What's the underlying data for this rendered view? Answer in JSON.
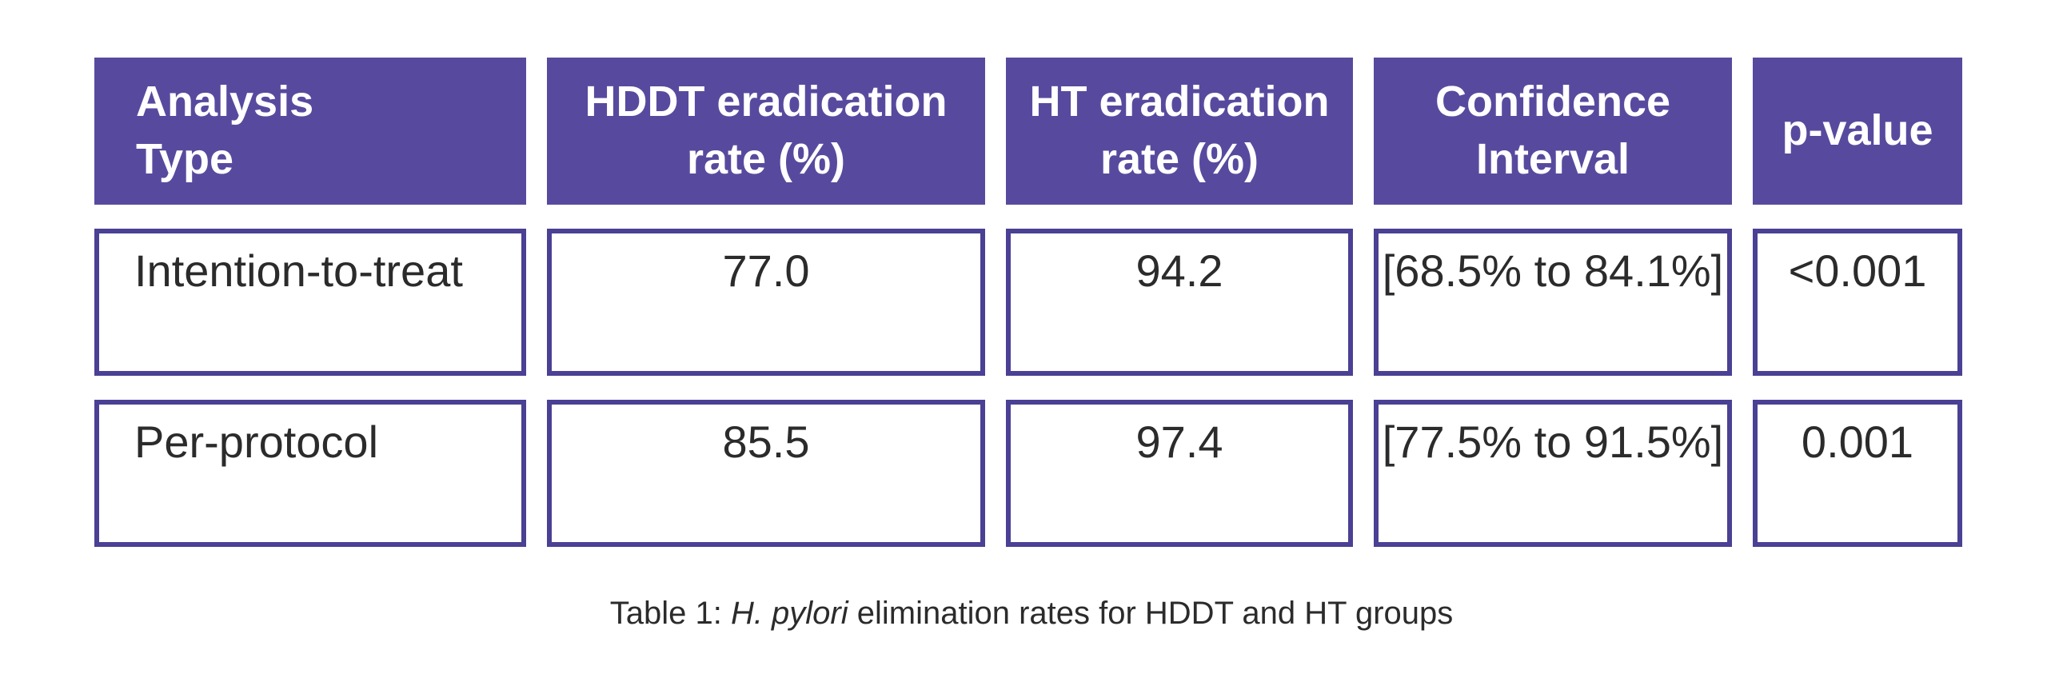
{
  "table": {
    "headers": [
      {
        "label": "Analysis\nType"
      },
      {
        "label": "HDDT eradication\nrate (%)"
      },
      {
        "label": "HT eradication\nrate (%)"
      },
      {
        "label": "Confidence\nInterval"
      },
      {
        "label": "p-value"
      }
    ],
    "rows": [
      [
        "Intention-to-treat",
        "77.0",
        "94.2",
        "[68.5% to 84.1%]",
        "<0.001"
      ],
      [
        "Per-protocol",
        "85.5",
        "97.4",
        "[77.5% to 91.5%]",
        "0.001"
      ]
    ]
  },
  "caption": {
    "prefix": "Table 1: ",
    "italic": "H. pylori",
    "suffix": " elimination rates for HDDT and HT groups"
  },
  "colors": {
    "header_bg": "#574A9E",
    "cell_border": "#4A4094",
    "header_text": "#FFFFFF",
    "body_text": "#2B2B2B"
  }
}
